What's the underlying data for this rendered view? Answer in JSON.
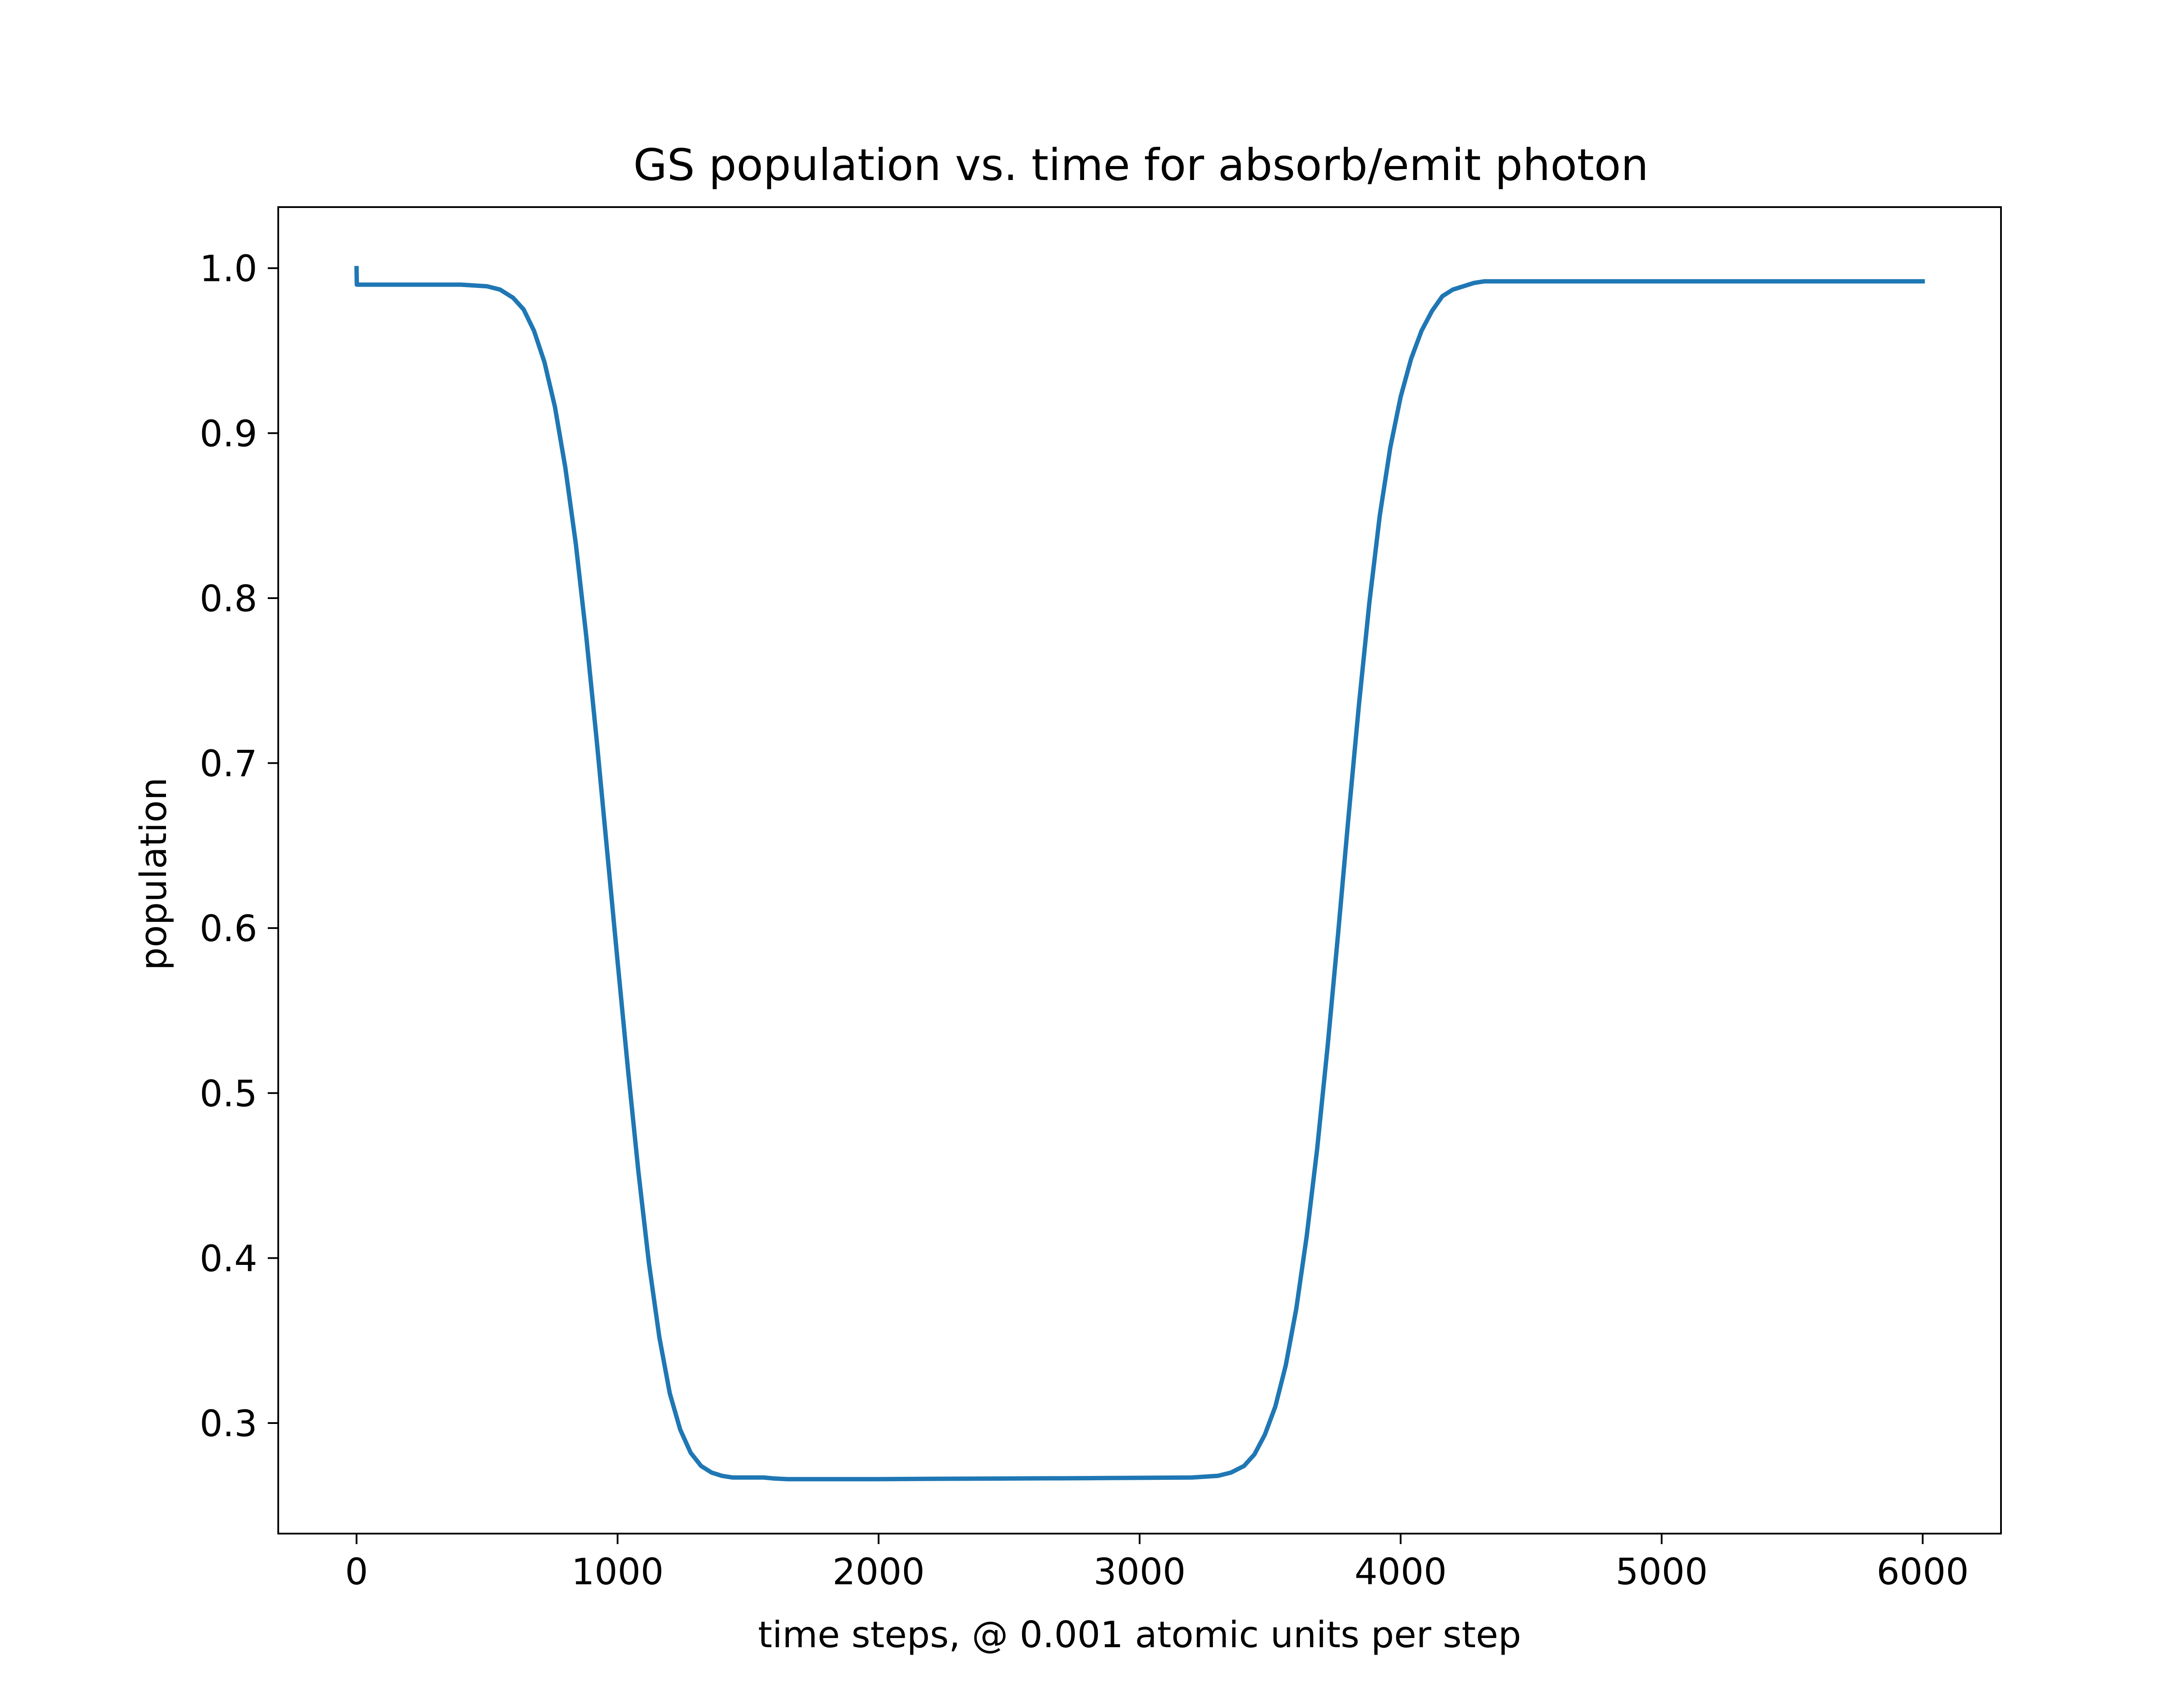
{
  "chart_data": {
    "type": "line",
    "title": "GS population vs. time for absorb/emit photon",
    "xlabel": "time steps, @ 0.001 atomic units per step",
    "ylabel": "population",
    "xlim": [
      -300,
      6300
    ],
    "ylim": [
      0.233,
      1.037
    ],
    "xticks": [
      0,
      1000,
      2000,
      3000,
      4000,
      5000,
      6000
    ],
    "xtick_labels": [
      "0",
      "1000",
      "2000",
      "3000",
      "4000",
      "5000",
      "6000"
    ],
    "yticks": [
      0.3,
      0.4,
      0.5,
      0.6,
      0.7,
      0.8,
      0.9,
      1.0
    ],
    "ytick_labels": [
      "0.3",
      "0.4",
      "0.5",
      "0.6",
      "0.7",
      "0.8",
      "0.9",
      "1.0"
    ],
    "grid": false,
    "legend": "none",
    "series": [
      {
        "color": "#1f77b4",
        "x": [
          0,
          1,
          5,
          100,
          200,
          300,
          400,
          500,
          550,
          600,
          640,
          680,
          720,
          760,
          800,
          840,
          880,
          920,
          960,
          1000,
          1040,
          1080,
          1120,
          1160,
          1200,
          1240,
          1280,
          1320,
          1360,
          1400,
          1440,
          1480,
          1520,
          1560,
          1600,
          1650,
          1700,
          1800,
          1900,
          2000,
          2200,
          2500,
          2800,
          3000,
          3200,
          3300,
          3350,
          3400,
          3440,
          3480,
          3520,
          3560,
          3600,
          3640,
          3680,
          3720,
          3760,
          3800,
          3840,
          3880,
          3920,
          3960,
          4000,
          4040,
          4080,
          4120,
          4160,
          4200,
          4240,
          4280,
          4320,
          4360,
          4400,
          4450,
          4500,
          4600,
          4800,
          5000,
          5500,
          6000
        ],
        "y": [
          1.0,
          0.99,
          0.99,
          0.99,
          0.99,
          0.99,
          0.99,
          0.989,
          0.987,
          0.982,
          0.975,
          0.962,
          0.943,
          0.916,
          0.879,
          0.833,
          0.777,
          0.714,
          0.647,
          0.58,
          0.514,
          0.452,
          0.397,
          0.352,
          0.318,
          0.296,
          0.282,
          0.274,
          0.27,
          0.268,
          0.267,
          0.267,
          0.267,
          0.267,
          0.2664,
          0.266,
          0.266,
          0.266,
          0.266,
          0.266,
          0.2662,
          0.2664,
          0.2666,
          0.2668,
          0.267,
          0.268,
          0.27,
          0.274,
          0.281,
          0.293,
          0.31,
          0.335,
          0.369,
          0.413,
          0.466,
          0.528,
          0.596,
          0.667,
          0.735,
          0.797,
          0.85,
          0.891,
          0.922,
          0.945,
          0.962,
          0.974,
          0.983,
          0.987,
          0.989,
          0.991,
          0.992,
          0.992,
          0.992,
          0.992,
          0.992,
          0.992,
          0.992,
          0.992,
          0.992,
          0.992
        ]
      }
    ]
  }
}
